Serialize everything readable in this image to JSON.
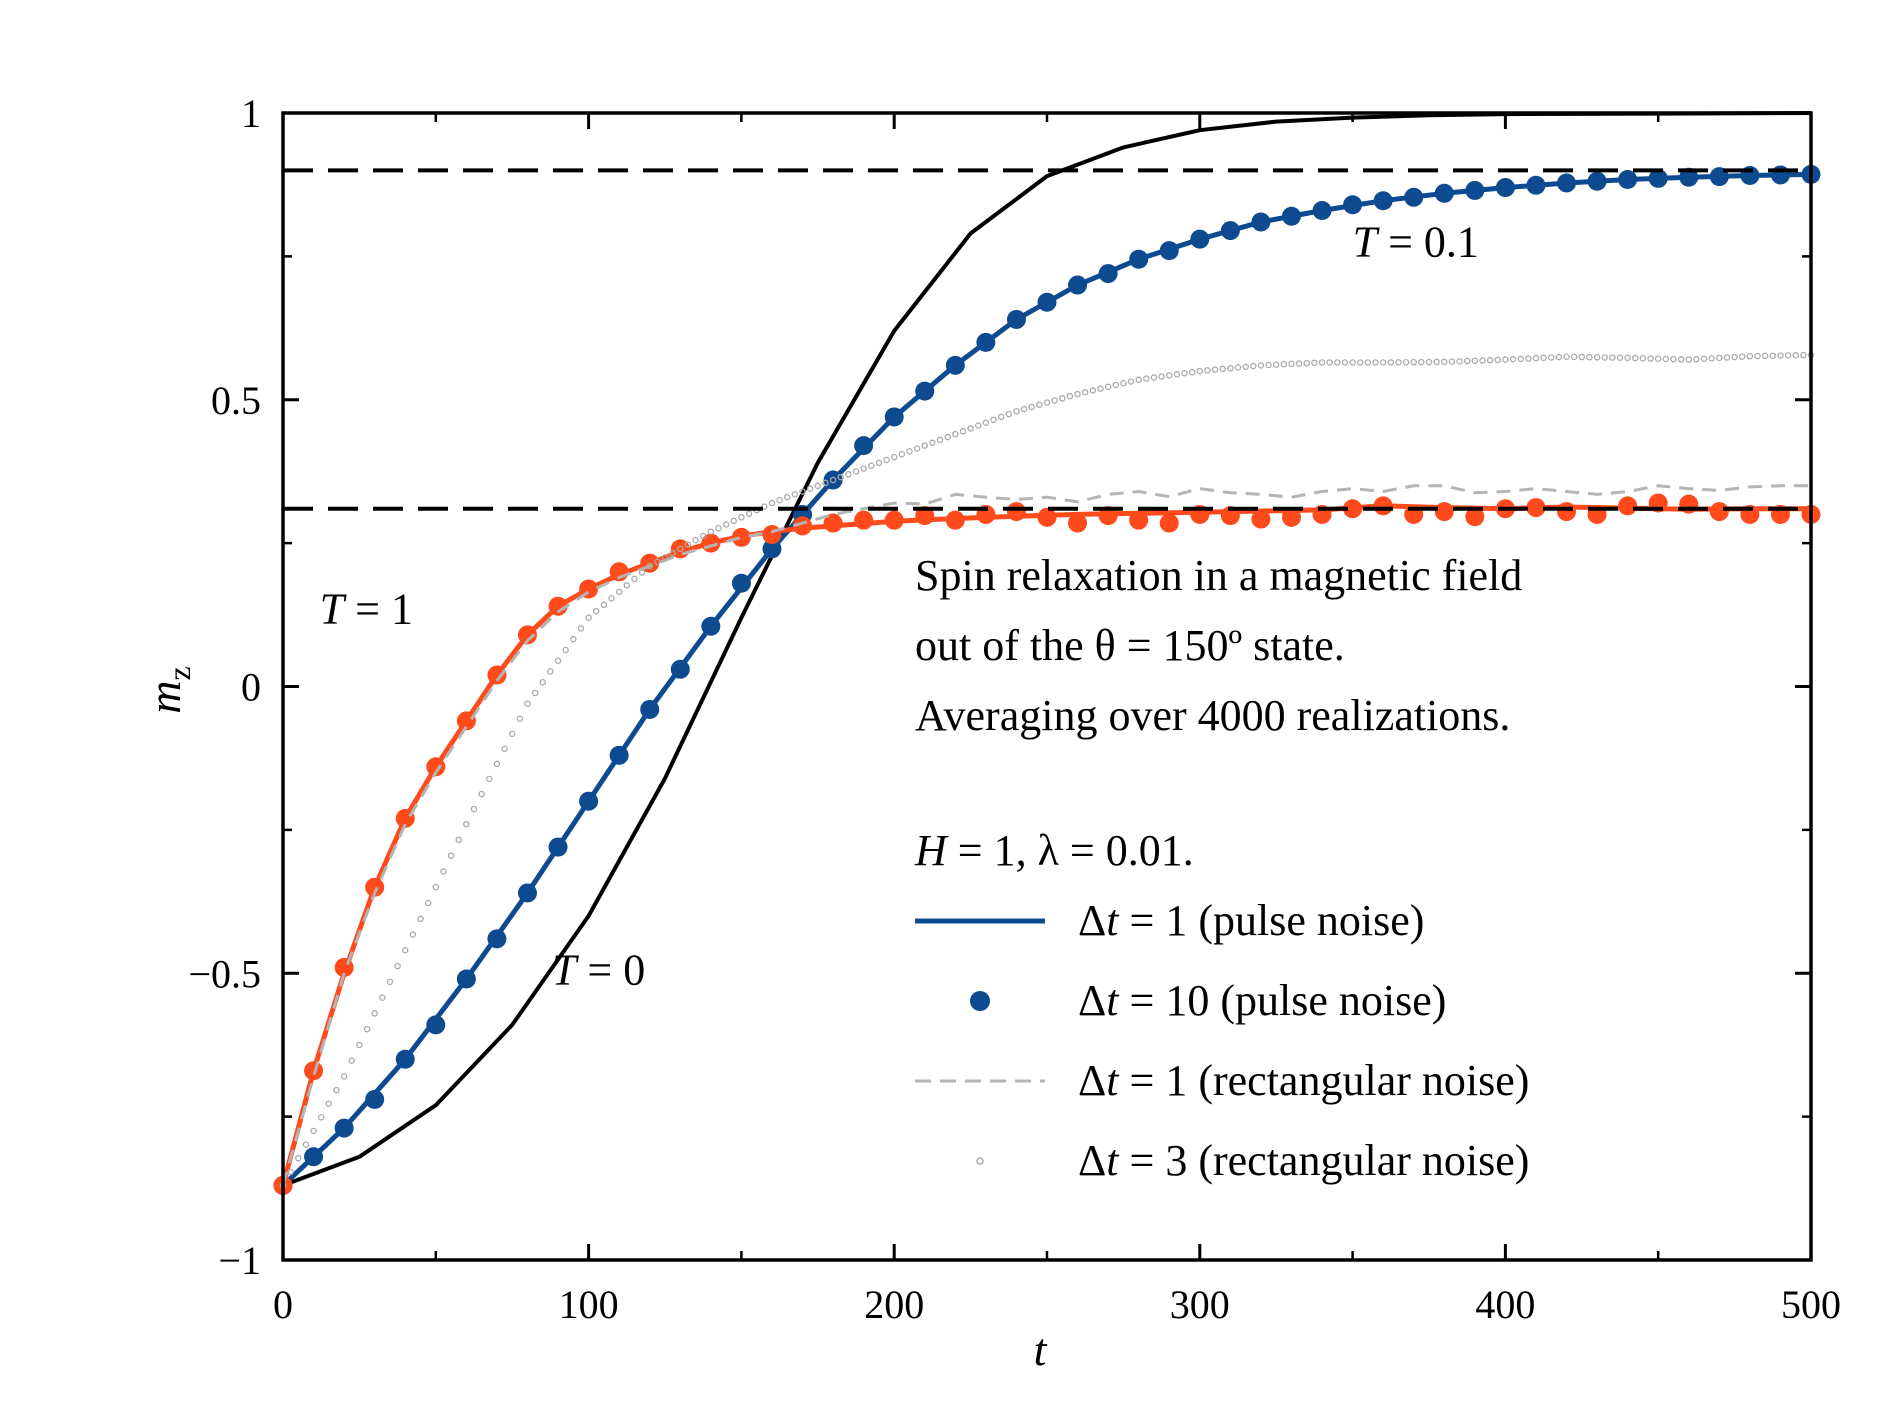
{
  "chart_data": {
    "type": "line",
    "title": "",
    "xlabel": "t",
    "ylabel": "m",
    "ylabel_sub": "z",
    "xlim": [
      0,
      500
    ],
    "ylim": [
      -1,
      1
    ],
    "xticks": [
      0,
      100,
      200,
      300,
      400,
      500
    ],
    "xtick_labels": [
      "0",
      "100",
      "200",
      "300",
      "400",
      "500"
    ],
    "yticks": [
      -1,
      -0.5,
      0,
      0.5,
      1
    ],
    "ytick_labels": [
      "−1",
      "−0.5",
      "0",
      "0.5",
      "1"
    ],
    "grid": false,
    "reference_lines": [
      {
        "name": "T = 0.1 equilibrium",
        "y": 0.9,
        "style": "dashed"
      },
      {
        "name": "T = 1 equilibrium",
        "y": 0.31,
        "style": "dashed"
      }
    ],
    "annotations": [
      {
        "text": "T = 0.1",
        "var": "T",
        "rest": " = 0.1",
        "x": 350,
        "y": 0.75
      },
      {
        "text": "T = 1",
        "var": "T",
        "rest": " = 1",
        "x": 12,
        "y": 0.11
      },
      {
        "text": "T = 0",
        "var": "T",
        "rest": " = 0",
        "x": 88,
        "y": -0.52
      }
    ],
    "note_lines": [
      "Spin relaxation in a magnetic field",
      "out of the θ = 150º state.",
      "Averaging over 4000 realizations."
    ],
    "params": {
      "H_var": "H",
      "text": " = 1, λ = 0.01."
    },
    "legend": {
      "placement": "lower-right",
      "entries": [
        {
          "sym": "Δ",
          "var": "t",
          "text": "  = 1 (pulse noise)",
          "style": "solid-line",
          "color": "#0d4a8f"
        },
        {
          "sym": "Δ",
          "var": "t",
          "text": "  = 10 (pulse noise)",
          "style": "filled-marker",
          "color": "#0d4a8f"
        },
        {
          "sym": "Δ",
          "var": "t",
          "text": "  = 1 (rectangular noise)",
          "style": "dashed-line",
          "color": "#b4b4b4"
        },
        {
          "sym": "Δ",
          "var": "t",
          "text": "  = 3 (rectangular noise)",
          "style": "open-marker",
          "color": "#a9a9a9"
        }
      ]
    },
    "series": [
      {
        "name": "T = 0",
        "style": "line",
        "color": "#000000",
        "x": [
          0,
          25,
          50,
          75,
          100,
          125,
          150,
          175,
          200,
          225,
          250,
          275,
          300,
          325,
          350,
          375,
          400,
          450,
          500
        ],
        "y": [
          -0.87,
          -0.82,
          -0.73,
          -0.59,
          -0.4,
          -0.16,
          0.12,
          0.39,
          0.62,
          0.79,
          0.89,
          0.94,
          0.97,
          0.985,
          0.992,
          0.996,
          0.998,
          0.999,
          1.0
        ]
      },
      {
        "name": "T = 0.1, Δt = 1 (pulse noise)",
        "style": "line",
        "color": "#0d4a8f",
        "x": [
          0,
          20,
          40,
          60,
          80,
          100,
          120,
          140,
          160,
          180,
          200,
          220,
          240,
          260,
          280,
          300,
          320,
          340,
          360,
          380,
          400,
          420,
          440,
          460,
          480,
          500
        ],
        "y": [
          -0.87,
          -0.77,
          -0.65,
          -0.51,
          -0.36,
          -0.2,
          -0.04,
          0.105,
          0.24,
          0.36,
          0.47,
          0.56,
          0.64,
          0.7,
          0.745,
          0.78,
          0.81,
          0.83,
          0.847,
          0.86,
          0.87,
          0.878,
          0.884,
          0.888,
          0.891,
          0.893
        ]
      },
      {
        "name": "T = 0.1, Δt = 10 (pulse noise)",
        "style": "marker",
        "color": "#0d4a8f",
        "x": [
          0,
          10,
          20,
          30,
          40,
          50,
          60,
          70,
          80,
          90,
          100,
          110,
          120,
          130,
          140,
          150,
          160,
          170,
          180,
          190,
          200,
          210,
          220,
          230,
          240,
          250,
          260,
          270,
          280,
          290,
          300,
          310,
          320,
          330,
          340,
          350,
          360,
          370,
          380,
          390,
          400,
          410,
          420,
          430,
          440,
          450,
          460,
          470,
          480,
          490,
          500
        ],
        "y": [
          -0.87,
          -0.82,
          -0.77,
          -0.72,
          -0.65,
          -0.59,
          -0.51,
          -0.44,
          -0.36,
          -0.28,
          -0.2,
          -0.12,
          -0.04,
          0.03,
          0.105,
          0.18,
          0.24,
          0.3,
          0.36,
          0.42,
          0.47,
          0.515,
          0.56,
          0.6,
          0.64,
          0.67,
          0.7,
          0.72,
          0.745,
          0.76,
          0.78,
          0.795,
          0.81,
          0.82,
          0.83,
          0.84,
          0.847,
          0.853,
          0.86,
          0.865,
          0.87,
          0.874,
          0.878,
          0.881,
          0.884,
          0.886,
          0.888,
          0.889,
          0.891,
          0.892,
          0.893
        ]
      },
      {
        "name": "T = 1, Δt = 1 (pulse noise)",
        "style": "line",
        "color": "#ff4a1c",
        "x": [
          0,
          10,
          20,
          30,
          40,
          50,
          60,
          70,
          80,
          90,
          100,
          110,
          120,
          130,
          140,
          150,
          160,
          170,
          180,
          200,
          220,
          240,
          260,
          280,
          300,
          320,
          340,
          360,
          380,
          400,
          420,
          440,
          460,
          480,
          500
        ],
        "y": [
          -0.87,
          -0.67,
          -0.5,
          -0.35,
          -0.23,
          -0.14,
          -0.06,
          0.02,
          0.09,
          0.14,
          0.17,
          0.195,
          0.215,
          0.235,
          0.25,
          0.262,
          0.27,
          0.276,
          0.28,
          0.288,
          0.293,
          0.297,
          0.3,
          0.302,
          0.304,
          0.306,
          0.308,
          0.315,
          0.312,
          0.31,
          0.313,
          0.311,
          0.309,
          0.31,
          0.31
        ]
      },
      {
        "name": "T = 1, Δt = 10 (pulse noise)",
        "style": "marker",
        "color": "#ff4a1c",
        "x": [
          0,
          10,
          20,
          30,
          40,
          50,
          60,
          70,
          80,
          90,
          100,
          110,
          120,
          130,
          140,
          150,
          160,
          170,
          180,
          190,
          200,
          210,
          220,
          230,
          240,
          250,
          260,
          270,
          280,
          290,
          300,
          310,
          320,
          330,
          340,
          350,
          360,
          370,
          380,
          390,
          400,
          410,
          420,
          430,
          440,
          450,
          460,
          470,
          480,
          490,
          500
        ],
        "y": [
          -0.87,
          -0.67,
          -0.49,
          -0.35,
          -0.23,
          -0.14,
          -0.06,
          0.02,
          0.09,
          0.14,
          0.17,
          0.2,
          0.215,
          0.24,
          0.25,
          0.26,
          0.265,
          0.28,
          0.285,
          0.29,
          0.29,
          0.298,
          0.29,
          0.3,
          0.305,
          0.295,
          0.285,
          0.298,
          0.29,
          0.285,
          0.3,
          0.298,
          0.292,
          0.295,
          0.3,
          0.31,
          0.315,
          0.3,
          0.305,
          0.296,
          0.31,
          0.312,
          0.305,
          0.3,
          0.315,
          0.32,
          0.318,
          0.305,
          0.3,
          0.3,
          0.3
        ]
      },
      {
        "name": "T = 1, Δt = 1 (rectangular noise)",
        "style": "dashed",
        "color": "#b4b4b4",
        "x": [
          0,
          10,
          20,
          30,
          40,
          50,
          60,
          70,
          80,
          90,
          100,
          110,
          120,
          130,
          140,
          150,
          160,
          170,
          180,
          190,
          200,
          210,
          220,
          230,
          240,
          250,
          260,
          270,
          280,
          290,
          300,
          310,
          320,
          330,
          340,
          350,
          360,
          370,
          380,
          390,
          400,
          410,
          420,
          430,
          440,
          450,
          460,
          470,
          480,
          490,
          500
        ],
        "y": [
          -0.87,
          -0.68,
          -0.5,
          -0.36,
          -0.24,
          -0.15,
          -0.07,
          0.01,
          0.08,
          0.13,
          0.165,
          0.19,
          0.21,
          0.23,
          0.245,
          0.26,
          0.27,
          0.285,
          0.3,
          0.31,
          0.32,
          0.318,
          0.335,
          0.33,
          0.326,
          0.33,
          0.322,
          0.335,
          0.34,
          0.331,
          0.345,
          0.338,
          0.335,
          0.33,
          0.34,
          0.345,
          0.34,
          0.35,
          0.35,
          0.338,
          0.34,
          0.345,
          0.34,
          0.335,
          0.34,
          0.35,
          0.345,
          0.342,
          0.348,
          0.35,
          0.35
        ]
      },
      {
        "name": "T = 1, Δt = 3 (rectangular noise)",
        "style": "open-marker",
        "color": "#a9a9a9",
        "x": [
          0,
          20,
          40,
          60,
          80,
          100,
          120,
          140,
          160,
          180,
          200,
          220,
          240,
          260,
          280,
          300,
          320,
          340,
          360,
          380,
          400,
          420,
          440,
          460,
          480,
          500
        ],
        "y": [
          -0.87,
          -0.68,
          -0.46,
          -0.24,
          -0.03,
          0.12,
          0.21,
          0.27,
          0.32,
          0.36,
          0.4,
          0.44,
          0.48,
          0.51,
          0.535,
          0.55,
          0.56,
          0.565,
          0.565,
          0.566,
          0.57,
          0.575,
          0.573,
          0.57,
          0.576,
          0.578
        ]
      }
    ]
  }
}
